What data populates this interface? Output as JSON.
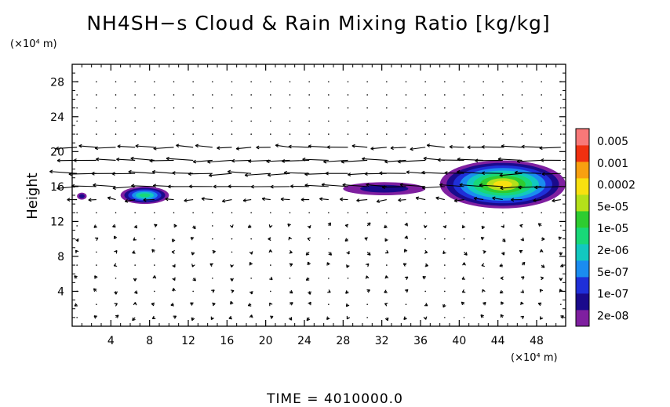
{
  "chart_data": {
    "type": "heatmap",
    "title": "NH4SH−s Cloud & Rain Mixing Ratio [kg/kg]",
    "xlabel": "",
    "ylabel": "Height",
    "x_unit": "(×10⁴ m)",
    "y_unit": "(×10⁴ m)",
    "xlim": [
      0,
      51
    ],
    "ylim": [
      0,
      30
    ],
    "x_ticks": [
      "4",
      "8",
      "12",
      "16",
      "20",
      "24",
      "28",
      "32",
      "36",
      "40",
      "44",
      "48"
    ],
    "y_ticks": [
      "4",
      "8",
      "12",
      "16",
      "20",
      "24",
      "28"
    ],
    "colorbar": {
      "labels": [
        "0.005",
        "0.001",
        "0.0002",
        "5e-05",
        "1e-05",
        "2e-06",
        "5e-07",
        "1e-07",
        "2e-08"
      ],
      "colors": [
        "#7f1fa0",
        "#1a0a8c",
        "#1f2fd8",
        "#1a8cf0",
        "#12c8c0",
        "#18d878",
        "#2ecc30",
        "#b4e01a",
        "#f8e010",
        "#f8a010",
        "#f03010",
        "#f87878"
      ]
    },
    "footer": "TIME  =  4010000.0",
    "cloud_regions": [
      {
        "x": [
          0.5,
          1.5
        ],
        "y": [
          14.5,
          15.3
        ],
        "max_level": 1
      },
      {
        "x": [
          5.0,
          10.0
        ],
        "y": [
          14.0,
          16.0
        ],
        "max_level": 5
      },
      {
        "x": [
          28.0,
          36.5
        ],
        "y": [
          15.0,
          16.5
        ],
        "max_level": 1
      },
      {
        "x": [
          38.0,
          51.0
        ],
        "y": [
          13.5,
          19.0
        ],
        "max_level": 8
      }
    ],
    "wind_field": {
      "x_range": [
        0.5,
        50.5
      ],
      "y_range": [
        1.0,
        29.0
      ],
      "jet_levels": [
        15.5,
        17.0,
        18.5,
        20.0
      ],
      "jet_direction": "westward"
    }
  }
}
